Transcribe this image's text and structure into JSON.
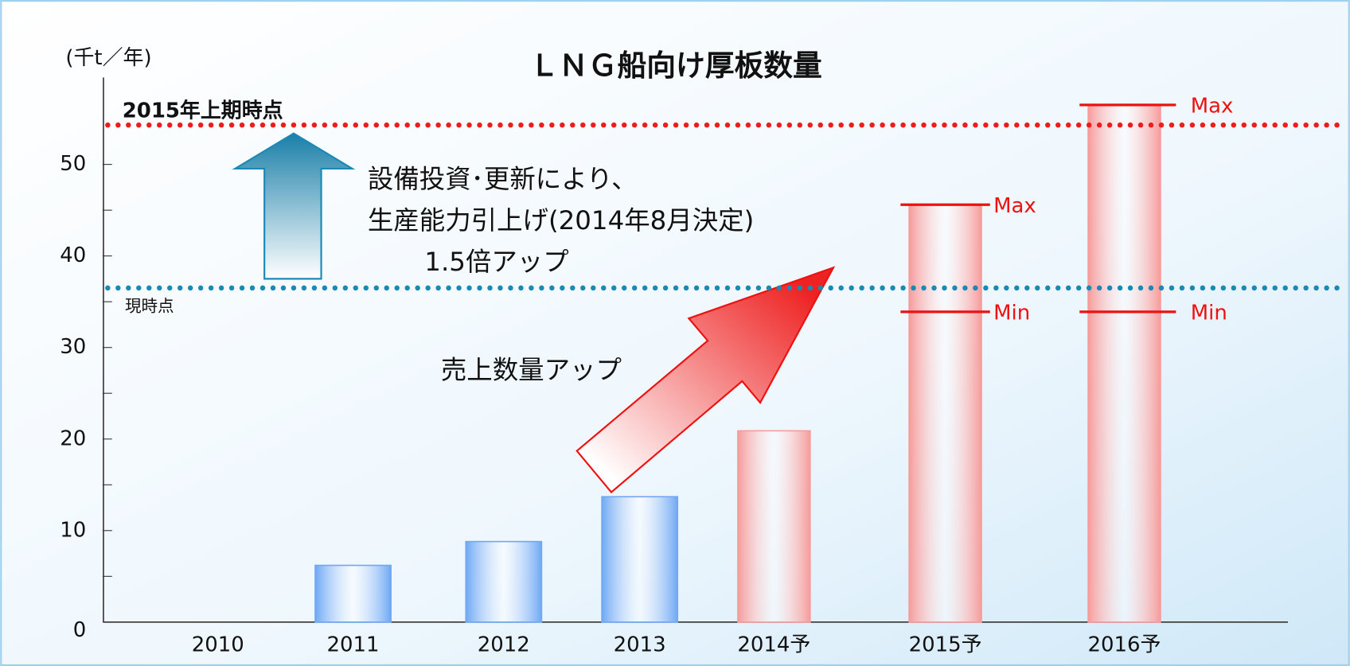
{
  "chart_data": {
    "type": "bar",
    "title": "ＬＮＧ船向け厚板数量",
    "y_label": "(千t／年)",
    "categories": [
      "2010",
      "2011",
      "2012",
      "2013",
      "2014予",
      "2015予",
      "2016予"
    ],
    "values": [
      0,
      6.2,
      8.8,
      13.7,
      20.9,
      45.6,
      56.5
    ],
    "colors": [
      "#6fa8f5",
      "#6fa8f5",
      "#6fa8f5",
      "#6fa8f5",
      "#f79b9b",
      "#f79b9b",
      "#f79b9b"
    ],
    "range_min": [
      null,
      null,
      null,
      null,
      null,
      33.9,
      33.9
    ],
    "max_label": "Max",
    "min_label": "Min",
    "range_color": "#ee1111",
    "ylim": [
      0,
      59.5
    ],
    "yticks": [
      0,
      10,
      20,
      30,
      40,
      50
    ],
    "reference_lines": [
      {
        "value": 54.3,
        "label": "2015年上期時点",
        "color": "#ee1c1c"
      },
      {
        "value": 36.5,
        "label": "現時点",
        "color": "#1a8ab5"
      }
    ],
    "annotations": [
      "設備投資･更新により、",
      "生産能力引上げ(2014年8月決定)",
      "1.5倍アップ",
      "売上数量アップ"
    ]
  }
}
